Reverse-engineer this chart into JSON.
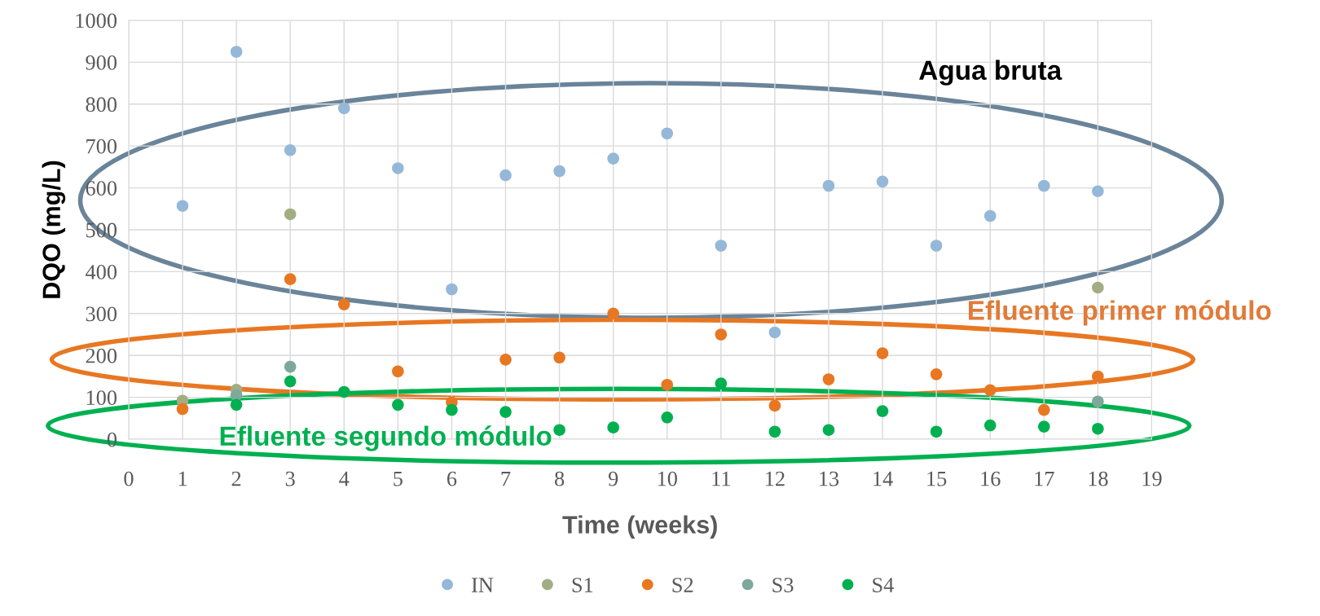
{
  "chart_data": {
    "type": "scatter",
    "xlabel": "Time (weeks)",
    "ylabel": "DQO (mg/L)",
    "x": [
      1,
      2,
      3,
      4,
      5,
      6,
      7,
      8,
      9,
      10,
      11,
      12,
      13,
      14,
      15,
      16,
      17,
      18
    ],
    "series": [
      {
        "name": "IN",
        "color": "#95b8d8",
        "values": [
          557,
          925,
          690,
          790,
          647,
          358,
          630,
          640,
          670,
          730,
          462,
          255,
          605,
          615,
          462,
          533,
          605,
          592
        ]
      },
      {
        "name": "S1",
        "color": "#a2ad82",
        "values": [
          92,
          118,
          537,
          null,
          null,
          null,
          null,
          null,
          null,
          null,
          null,
          null,
          null,
          null,
          null,
          null,
          null,
          362
        ]
      },
      {
        "name": "S2",
        "color": "#e87722",
        "values": [
          72,
          null,
          382,
          322,
          162,
          88,
          190,
          195,
          300,
          130,
          250,
          80,
          143,
          205,
          155,
          117,
          70,
          150
        ]
      },
      {
        "name": "S3",
        "color": "#7fa89c",
        "values": [
          null,
          105,
          173,
          null,
          null,
          null,
          null,
          null,
          null,
          null,
          null,
          null,
          null,
          null,
          null,
          null,
          null,
          90
        ]
      },
      {
        "name": "S4",
        "color": "#00b050",
        "values": [
          null,
          82,
          138,
          113,
          82,
          70,
          65,
          22,
          28,
          52,
          133,
          18,
          22,
          67,
          18,
          33,
          30,
          25
        ]
      }
    ],
    "annotations": [
      "Agua bruta",
      "Efluente primer módulo",
      "Efluente segundo módulo"
    ],
    "xlim": [
      0,
      19
    ],
    "xticks": [
      0,
      1,
      2,
      3,
      4,
      5,
      6,
      7,
      8,
      9,
      10,
      11,
      12,
      13,
      14,
      15,
      16,
      17,
      18,
      19
    ],
    "ylim": [
      0,
      1000
    ],
    "yticks": [
      0,
      100,
      200,
      300,
      400,
      500,
      600,
      700,
      800,
      900,
      1000
    ],
    "grid": true,
    "legend": "bottom",
    "marker": "circle"
  }
}
